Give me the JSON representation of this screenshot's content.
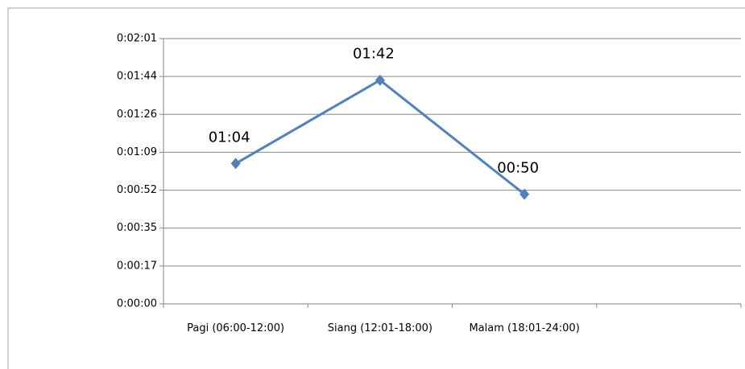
{
  "chart_data": {
    "type": "line",
    "categories": [
      "Pagi (06:00-12:00)",
      "Siang (12:01-18:00)",
      "Malam (18:01-24:00)",
      null
    ],
    "series": [
      {
        "name": null,
        "color": "#4f81bd",
        "values": [
          64,
          102,
          50,
          null
        ],
        "value_labels": [
          "01:04",
          "01:42",
          "00:50",
          null
        ]
      }
    ],
    "ylim": [
      0,
      120.96
    ],
    "yticks": [
      {
        "value": 0,
        "label": "0:00:00"
      },
      {
        "value": 17.28,
        "label": "0:00:17"
      },
      {
        "value": 34.56,
        "label": "0:00:35"
      },
      {
        "value": 51.84,
        "label": "0:00:52"
      },
      {
        "value": 69.12,
        "label": "0:01:09"
      },
      {
        "value": 86.4,
        "label": "0:01:26"
      },
      {
        "value": 103.68,
        "label": "0:01:44"
      },
      {
        "value": 120.96,
        "label": "0:02:01"
      }
    ],
    "grid": true
  }
}
